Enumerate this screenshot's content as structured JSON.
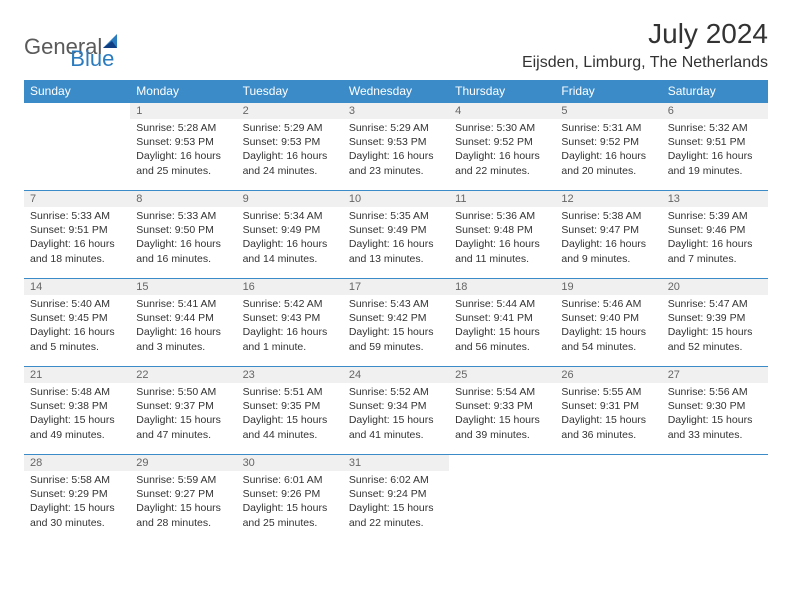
{
  "brand": {
    "general": "General",
    "blue": "Blue"
  },
  "title": "July 2024",
  "location": "Eijsden, Limburg, The Netherlands",
  "colors": {
    "header_bg": "#3b8bc9",
    "header_fg": "#ffffff",
    "rule": "#3b8bc9",
    "daynum_bg": "#f0f0f0",
    "text": "#333333",
    "logo_gray": "#5a5a5a",
    "logo_blue": "#2b7bbf"
  },
  "columns": [
    "Sunday",
    "Monday",
    "Tuesday",
    "Wednesday",
    "Thursday",
    "Friday",
    "Saturday"
  ],
  "weeks": [
    [
      {
        "empty": true
      },
      {
        "n": "1",
        "sunrise": "Sunrise: 5:28 AM",
        "sunset": "Sunset: 9:53 PM",
        "daylight": "Daylight: 16 hours and 25 minutes."
      },
      {
        "n": "2",
        "sunrise": "Sunrise: 5:29 AM",
        "sunset": "Sunset: 9:53 PM",
        "daylight": "Daylight: 16 hours and 24 minutes."
      },
      {
        "n": "3",
        "sunrise": "Sunrise: 5:29 AM",
        "sunset": "Sunset: 9:53 PM",
        "daylight": "Daylight: 16 hours and 23 minutes."
      },
      {
        "n": "4",
        "sunrise": "Sunrise: 5:30 AM",
        "sunset": "Sunset: 9:52 PM",
        "daylight": "Daylight: 16 hours and 22 minutes."
      },
      {
        "n": "5",
        "sunrise": "Sunrise: 5:31 AM",
        "sunset": "Sunset: 9:52 PM",
        "daylight": "Daylight: 16 hours and 20 minutes."
      },
      {
        "n": "6",
        "sunrise": "Sunrise: 5:32 AM",
        "sunset": "Sunset: 9:51 PM",
        "daylight": "Daylight: 16 hours and 19 minutes."
      }
    ],
    [
      {
        "n": "7",
        "sunrise": "Sunrise: 5:33 AM",
        "sunset": "Sunset: 9:51 PM",
        "daylight": "Daylight: 16 hours and 18 minutes."
      },
      {
        "n": "8",
        "sunrise": "Sunrise: 5:33 AM",
        "sunset": "Sunset: 9:50 PM",
        "daylight": "Daylight: 16 hours and 16 minutes."
      },
      {
        "n": "9",
        "sunrise": "Sunrise: 5:34 AM",
        "sunset": "Sunset: 9:49 PM",
        "daylight": "Daylight: 16 hours and 14 minutes."
      },
      {
        "n": "10",
        "sunrise": "Sunrise: 5:35 AM",
        "sunset": "Sunset: 9:49 PM",
        "daylight": "Daylight: 16 hours and 13 minutes."
      },
      {
        "n": "11",
        "sunrise": "Sunrise: 5:36 AM",
        "sunset": "Sunset: 9:48 PM",
        "daylight": "Daylight: 16 hours and 11 minutes."
      },
      {
        "n": "12",
        "sunrise": "Sunrise: 5:38 AM",
        "sunset": "Sunset: 9:47 PM",
        "daylight": "Daylight: 16 hours and 9 minutes."
      },
      {
        "n": "13",
        "sunrise": "Sunrise: 5:39 AM",
        "sunset": "Sunset: 9:46 PM",
        "daylight": "Daylight: 16 hours and 7 minutes."
      }
    ],
    [
      {
        "n": "14",
        "sunrise": "Sunrise: 5:40 AM",
        "sunset": "Sunset: 9:45 PM",
        "daylight": "Daylight: 16 hours and 5 minutes."
      },
      {
        "n": "15",
        "sunrise": "Sunrise: 5:41 AM",
        "sunset": "Sunset: 9:44 PM",
        "daylight": "Daylight: 16 hours and 3 minutes."
      },
      {
        "n": "16",
        "sunrise": "Sunrise: 5:42 AM",
        "sunset": "Sunset: 9:43 PM",
        "daylight": "Daylight: 16 hours and 1 minute."
      },
      {
        "n": "17",
        "sunrise": "Sunrise: 5:43 AM",
        "sunset": "Sunset: 9:42 PM",
        "daylight": "Daylight: 15 hours and 59 minutes."
      },
      {
        "n": "18",
        "sunrise": "Sunrise: 5:44 AM",
        "sunset": "Sunset: 9:41 PM",
        "daylight": "Daylight: 15 hours and 56 minutes."
      },
      {
        "n": "19",
        "sunrise": "Sunrise: 5:46 AM",
        "sunset": "Sunset: 9:40 PM",
        "daylight": "Daylight: 15 hours and 54 minutes."
      },
      {
        "n": "20",
        "sunrise": "Sunrise: 5:47 AM",
        "sunset": "Sunset: 9:39 PM",
        "daylight": "Daylight: 15 hours and 52 minutes."
      }
    ],
    [
      {
        "n": "21",
        "sunrise": "Sunrise: 5:48 AM",
        "sunset": "Sunset: 9:38 PM",
        "daylight": "Daylight: 15 hours and 49 minutes."
      },
      {
        "n": "22",
        "sunrise": "Sunrise: 5:50 AM",
        "sunset": "Sunset: 9:37 PM",
        "daylight": "Daylight: 15 hours and 47 minutes."
      },
      {
        "n": "23",
        "sunrise": "Sunrise: 5:51 AM",
        "sunset": "Sunset: 9:35 PM",
        "daylight": "Daylight: 15 hours and 44 minutes."
      },
      {
        "n": "24",
        "sunrise": "Sunrise: 5:52 AM",
        "sunset": "Sunset: 9:34 PM",
        "daylight": "Daylight: 15 hours and 41 minutes."
      },
      {
        "n": "25",
        "sunrise": "Sunrise: 5:54 AM",
        "sunset": "Sunset: 9:33 PM",
        "daylight": "Daylight: 15 hours and 39 minutes."
      },
      {
        "n": "26",
        "sunrise": "Sunrise: 5:55 AM",
        "sunset": "Sunset: 9:31 PM",
        "daylight": "Daylight: 15 hours and 36 minutes."
      },
      {
        "n": "27",
        "sunrise": "Sunrise: 5:56 AM",
        "sunset": "Sunset: 9:30 PM",
        "daylight": "Daylight: 15 hours and 33 minutes."
      }
    ],
    [
      {
        "n": "28",
        "sunrise": "Sunrise: 5:58 AM",
        "sunset": "Sunset: 9:29 PM",
        "daylight": "Daylight: 15 hours and 30 minutes."
      },
      {
        "n": "29",
        "sunrise": "Sunrise: 5:59 AM",
        "sunset": "Sunset: 9:27 PM",
        "daylight": "Daylight: 15 hours and 28 minutes."
      },
      {
        "n": "30",
        "sunrise": "Sunrise: 6:01 AM",
        "sunset": "Sunset: 9:26 PM",
        "daylight": "Daylight: 15 hours and 25 minutes."
      },
      {
        "n": "31",
        "sunrise": "Sunrise: 6:02 AM",
        "sunset": "Sunset: 9:24 PM",
        "daylight": "Daylight: 15 hours and 22 minutes."
      },
      {
        "empty": true
      },
      {
        "empty": true
      },
      {
        "empty": true
      }
    ]
  ]
}
